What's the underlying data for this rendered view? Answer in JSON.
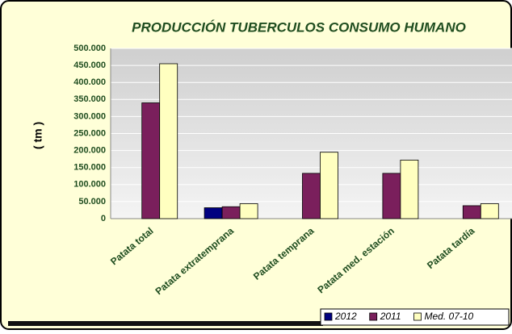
{
  "chart_data": {
    "type": "bar",
    "title": "PRODUCCIÓN TUBERCULOS CONSUMO HUMANO",
    "y_label": "( tm )",
    "categories": [
      "Patata total",
      "Patata extratemprana",
      "Patata temprana",
      "Patata med. estación",
      "Patata tardía"
    ],
    "series": [
      {
        "name": "2012",
        "color": "#000080",
        "values": [
          null,
          32000,
          null,
          null,
          null
        ]
      },
      {
        "name": "2011",
        "color": "#7a1f5c",
        "values": [
          340000,
          35000,
          133000,
          133000,
          38000
        ]
      },
      {
        "name": "Med. 07-10",
        "color": "#ffffc0",
        "values": [
          455000,
          44000,
          195000,
          172000,
          44000
        ]
      }
    ],
    "ylim": [
      0,
      500000
    ],
    "yticks": [
      0,
      {
        "value": 50000,
        "label": "50.000"
      },
      {
        "value": 100000,
        "label": "100.000"
      },
      {
        "value": 150000,
        "label": "150.000"
      },
      {
        "value": 200000,
        "label": "200.000"
      },
      {
        "value": 250000,
        "label": "250.000"
      },
      {
        "value": 300000,
        "label": "300.000"
      },
      {
        "value": 350000,
        "label": "350.000"
      },
      {
        "value": 400000,
        "label": "400.000"
      },
      {
        "value": 450000,
        "label": "450.000"
      },
      {
        "value": 500000,
        "label": "500.000"
      }
    ],
    "grid": true
  }
}
